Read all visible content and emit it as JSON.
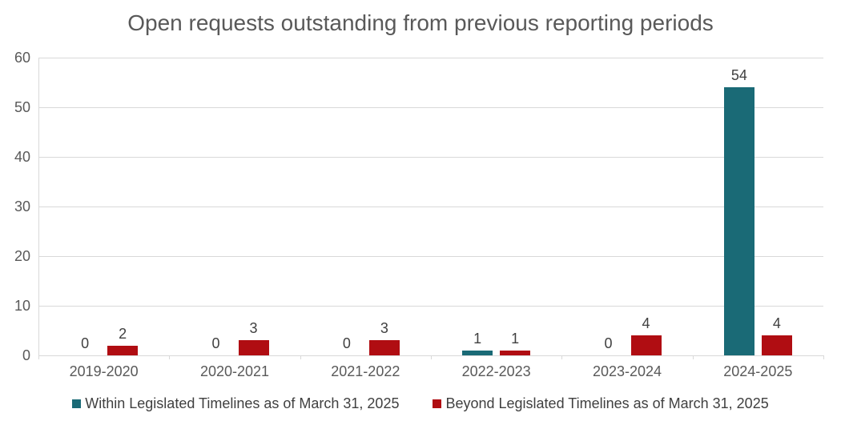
{
  "title": "Open requests outstanding from previous reporting periods",
  "chart_data": {
    "type": "bar",
    "title": "Open requests outstanding from previous reporting periods",
    "categories": [
      "2019-2020",
      "2020-2021",
      "2021-2022",
      "2022-2023",
      "2023-2024",
      "2024-2025"
    ],
    "series": [
      {
        "name": "Within Legislated Timelines as of March 31, 2025",
        "color": "#1a6a76",
        "values": [
          0,
          0,
          0,
          1,
          0,
          54
        ]
      },
      {
        "name": "Beyond Legislated Timelines as of March 31, 2025",
        "color": "#b00d12",
        "values": [
          2,
          3,
          3,
          1,
          4,
          4
        ]
      }
    ],
    "xlabel": "",
    "ylabel": "",
    "ylim": [
      0,
      60
    ],
    "yticks": [
      0,
      10,
      20,
      30,
      40,
      50,
      60
    ],
    "grid": "horizontal",
    "legend_position": "bottom",
    "data_labels": true
  },
  "style": {
    "background": "#ffffff",
    "grid_color": "#d9d9d9",
    "axis_color": "#d9d9d9",
    "title_color": "#595959",
    "tick_label_color": "#595959",
    "data_label_color": "#404040",
    "legend_text_color": "#404040"
  }
}
